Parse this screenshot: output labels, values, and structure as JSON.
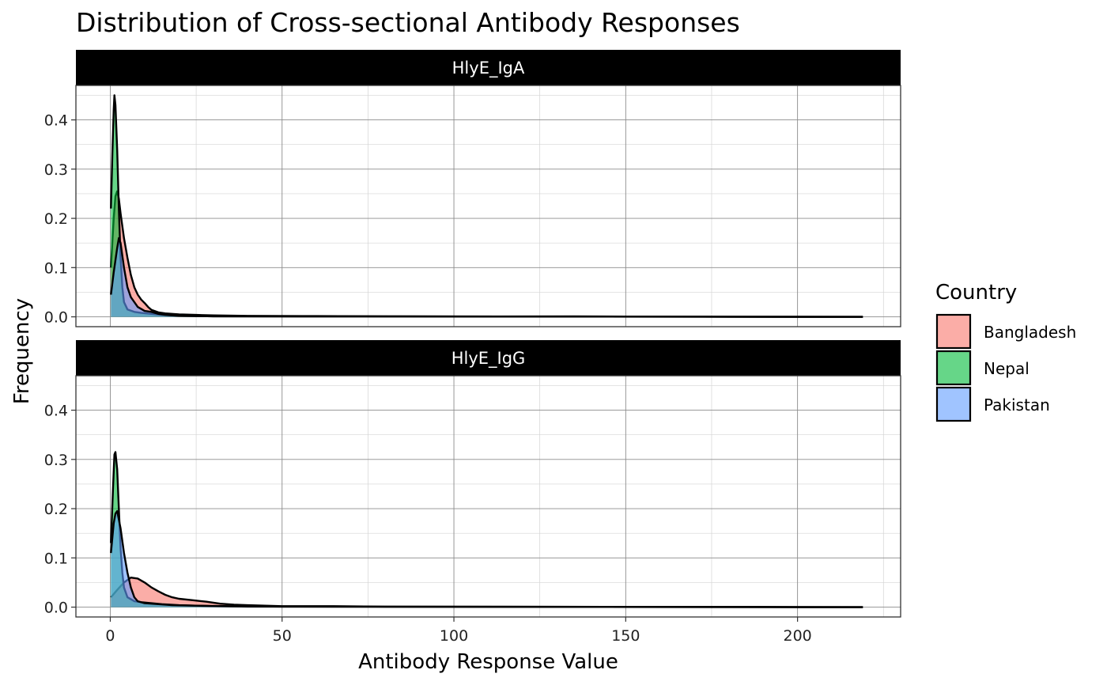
{
  "chart_data": {
    "type": "area",
    "title": "Distribution of Cross-sectional Antibody Responses",
    "xlabel": "Antibody Response Value",
    "ylabel": "Frequency",
    "xlim": [
      -10,
      230
    ],
    "ylim": [
      -0.02,
      0.47
    ],
    "x_ticks": [
      0,
      50,
      100,
      150,
      200
    ],
    "y_ticks": [
      0.0,
      0.1,
      0.2,
      0.3,
      0.4
    ],
    "grid": true,
    "legend": {
      "title": "Country",
      "position": "right",
      "entries": [
        "Bangladesh",
        "Nepal",
        "Pakistan"
      ]
    },
    "colors": {
      "Bangladesh": "#F8766D",
      "Nepal": "#00BA38",
      "Pakistan": "#619CFF",
      "fill_opacity": 0.6
    },
    "panels": [
      {
        "strip": "HlyE_IgA",
        "series": [
          {
            "name": "Bangladesh",
            "points": [
              [
                0.2,
                0.1
              ],
              [
                1,
                0.2
              ],
              [
                1.5,
                0.245
              ],
              [
                2,
                0.255
              ],
              [
                2.5,
                0.24
              ],
              [
                3,
                0.21
              ],
              [
                4,
                0.16
              ],
              [
                5,
                0.12
              ],
              [
                6,
                0.085
              ],
              [
                7,
                0.06
              ],
              [
                8,
                0.045
              ],
              [
                9,
                0.035
              ],
              [
                10,
                0.028
              ],
              [
                11,
                0.02
              ],
              [
                12,
                0.014
              ],
              [
                14,
                0.009
              ],
              [
                16,
                0.007
              ],
              [
                20,
                0.005
              ],
              [
                25,
                0.004
              ],
              [
                30,
                0.003
              ],
              [
                40,
                0.002
              ],
              [
                60,
                0.0015
              ],
              [
                80,
                0.001
              ],
              [
                100,
                0.0008
              ],
              [
                135,
                0.001
              ],
              [
                150,
                0.0005
              ],
              [
                180,
                0.0003
              ],
              [
                219,
                0.0
              ]
            ]
          },
          {
            "name": "Nepal",
            "points": [
              [
                0.2,
                0.22
              ],
              [
                0.6,
                0.33
              ],
              [
                1,
                0.42
              ],
              [
                1.2,
                0.45
              ],
              [
                1.5,
                0.43
              ],
              [
                2,
                0.34
              ],
              [
                2.5,
                0.22
              ],
              [
                3,
                0.12
              ],
              [
                3.5,
                0.06
              ],
              [
                4,
                0.03
              ],
              [
                5,
                0.015
              ],
              [
                7,
                0.01
              ],
              [
                9,
                0.008
              ],
              [
                12,
                0.006
              ],
              [
                15,
                0.004
              ],
              [
                20,
                0.002
              ],
              [
                30,
                0.001
              ],
              [
                219,
                0.0
              ]
            ]
          },
          {
            "name": "Pakistan",
            "points": [
              [
                0.2,
                0.045
              ],
              [
                1,
                0.09
              ],
              [
                2,
                0.14
              ],
              [
                2.5,
                0.16
              ],
              [
                3,
                0.15
              ],
              [
                4,
                0.1
              ],
              [
                5,
                0.06
              ],
              [
                6,
                0.04
              ],
              [
                7,
                0.03
              ],
              [
                8,
                0.02
              ],
              [
                10,
                0.012
              ],
              [
                12,
                0.01
              ],
              [
                14,
                0.006
              ],
              [
                16,
                0.004
              ],
              [
                20,
                0.002
              ],
              [
                30,
                0.001
              ],
              [
                219,
                0.0
              ]
            ]
          }
        ]
      },
      {
        "strip": "HlyE_IgG",
        "series": [
          {
            "name": "Bangladesh",
            "points": [
              [
                0.2,
                0.02
              ],
              [
                2,
                0.035
              ],
              [
                4,
                0.05
              ],
              [
                6,
                0.06
              ],
              [
                8,
                0.058
              ],
              [
                10,
                0.05
              ],
              [
                12,
                0.04
              ],
              [
                14,
                0.032
              ],
              [
                16,
                0.025
              ],
              [
                18,
                0.02
              ],
              [
                20,
                0.017
              ],
              [
                24,
                0.014
              ],
              [
                28,
                0.011
              ],
              [
                32,
                0.007
              ],
              [
                36,
                0.005
              ],
              [
                40,
                0.004
              ],
              [
                50,
                0.002
              ],
              [
                65,
                0.002
              ],
              [
                80,
                0.001
              ],
              [
                100,
                0.001
              ],
              [
                130,
                0.0008
              ],
              [
                150,
                0.0005
              ],
              [
                184,
                0.0005
              ],
              [
                200,
                0.0003
              ],
              [
                219,
                0.0
              ]
            ]
          },
          {
            "name": "Nepal",
            "points": [
              [
                0.2,
                0.13
              ],
              [
                0.8,
                0.24
              ],
              [
                1.2,
                0.31
              ],
              [
                1.5,
                0.315
              ],
              [
                2,
                0.28
              ],
              [
                2.5,
                0.2
              ],
              [
                3,
                0.12
              ],
              [
                3.5,
                0.07
              ],
              [
                4,
                0.04
              ],
              [
                5,
                0.02
              ],
              [
                7,
                0.012
              ],
              [
                9,
                0.01
              ],
              [
                12,
                0.008
              ],
              [
                15,
                0.006
              ],
              [
                20,
                0.004
              ],
              [
                30,
                0.002
              ],
              [
                40,
                0.001
              ],
              [
                219,
                0.0
              ]
            ]
          },
          {
            "name": "Pakistan",
            "points": [
              [
                0.2,
                0.11
              ],
              [
                1,
                0.17
              ],
              [
                1.5,
                0.19
              ],
              [
                2,
                0.195
              ],
              [
                3,
                0.16
              ],
              [
                4,
                0.11
              ],
              [
                5,
                0.07
              ],
              [
                6,
                0.04
              ],
              [
                7,
                0.02
              ],
              [
                8,
                0.012
              ],
              [
                10,
                0.008
              ],
              [
                14,
                0.006
              ],
              [
                18,
                0.004
              ],
              [
                25,
                0.003
              ],
              [
                35,
                0.002
              ],
              [
                50,
                0.001
              ],
              [
                219,
                0.0
              ]
            ]
          }
        ]
      }
    ]
  }
}
